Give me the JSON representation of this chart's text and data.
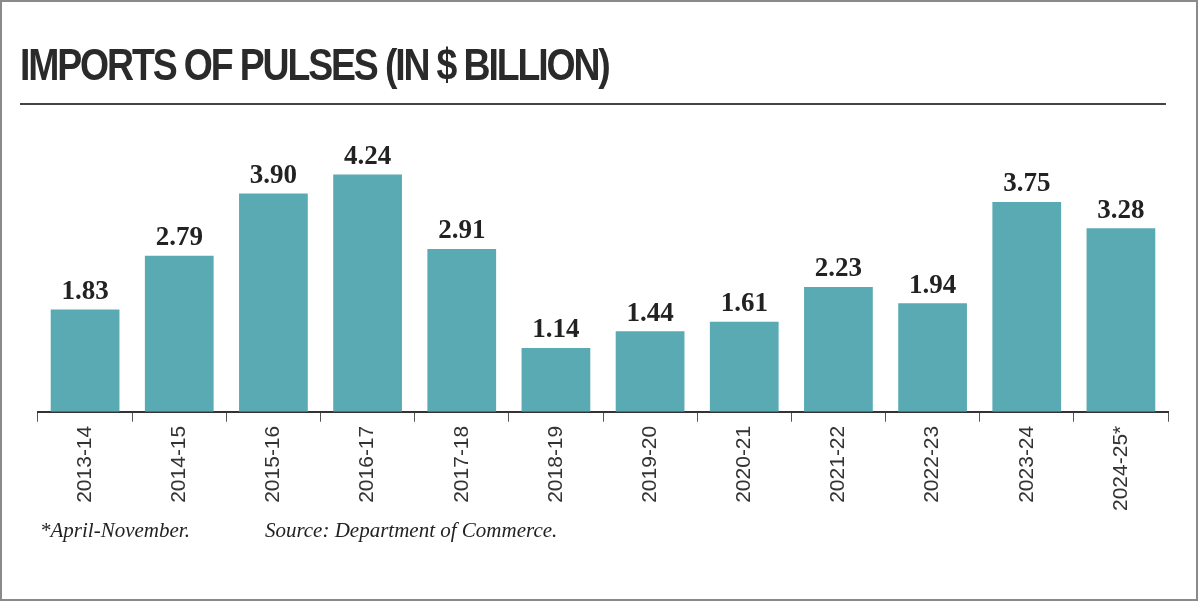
{
  "chart_data": {
    "type": "bar",
    "title": "IMPORTS OF PULSES (IN $ BILLION)",
    "categories": [
      "2013-14",
      "2014-15",
      "2015-16",
      "2016-17",
      "2017-18",
      "2018-19",
      "2019-20",
      "2020-21",
      "2021-22",
      "2022-23",
      "2023-24",
      "2024-25*"
    ],
    "values": [
      1.83,
      2.79,
      3.9,
      4.24,
      2.91,
      1.14,
      1.44,
      1.61,
      2.23,
      1.94,
      3.75,
      3.28
    ],
    "value_labels": [
      "1.83",
      "2.79",
      "3.90",
      "4.24",
      "2.91",
      "1.14",
      "1.44",
      "1.61",
      "2.23",
      "1.94",
      "3.75",
      "3.28"
    ],
    "color": "#5aaab4",
    "tick_labels": "x",
    "annotations": [
      "*April-November.",
      "Source: Department of Commerce."
    ]
  }
}
